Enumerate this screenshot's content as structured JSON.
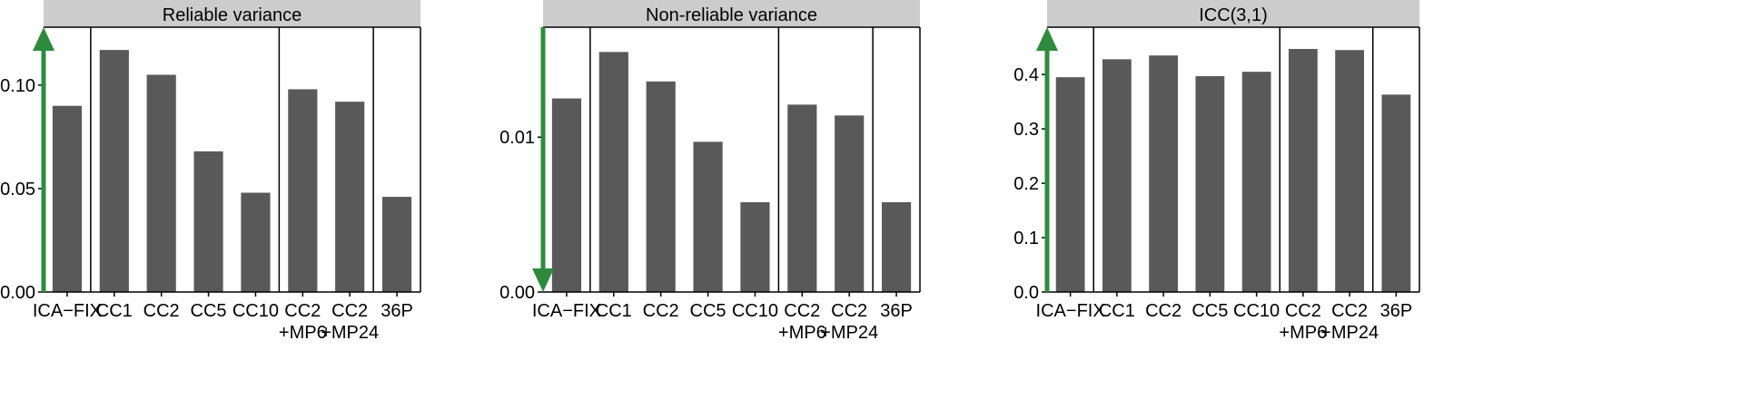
{
  "chart_data": [
    {
      "type": "bar",
      "title": "Reliable variance",
      "categories": [
        "ICA−FIX",
        "CC1",
        "CC2",
        "CC5",
        "CC10",
        "CC2\n+MP6",
        "CC2\n+MP24",
        "36P"
      ],
      "values": [
        0.09,
        0.117,
        0.105,
        0.068,
        0.048,
        0.098,
        0.092,
        0.046
      ],
      "ylim": [
        0,
        0.128
      ],
      "yticks": [
        0.0,
        0.05,
        0.1
      ],
      "ytick_labels": [
        "0.00",
        "0.05",
        "0.10"
      ],
      "group_separators_after": [
        0,
        4,
        6
      ],
      "arrow": "up",
      "xlabel": "",
      "ylabel": ""
    },
    {
      "type": "bar",
      "title": "Non-reliable variance",
      "categories": [
        "ICA−FIX",
        "CC1",
        "CC2",
        "CC5",
        "CC10",
        "CC2\n+MP6",
        "CC2\n+MP24",
        "36P"
      ],
      "values": [
        0.0125,
        0.0155,
        0.0136,
        0.0097,
        0.0058,
        0.0121,
        0.0114,
        0.0058
      ],
      "ylim": [
        0,
        0.0171
      ],
      "yticks": [
        0.0,
        0.01
      ],
      "ytick_labels": [
        "0.00",
        "0.01"
      ],
      "group_separators_after": [
        0,
        4,
        6
      ],
      "arrow": "down",
      "xlabel": "",
      "ylabel": ""
    },
    {
      "type": "bar",
      "title": "ICC(3,1)",
      "categories": [
        "ICA−FIX",
        "CC1",
        "CC2",
        "CC5",
        "CC10",
        "CC2\n+MP6",
        "CC2\n+MP24",
        "36P"
      ],
      "values": [
        0.395,
        0.428,
        0.435,
        0.397,
        0.405,
        0.447,
        0.445,
        0.363
      ],
      "ylim": [
        0,
        0.487
      ],
      "yticks": [
        0.0,
        0.1,
        0.2,
        0.3,
        0.4
      ],
      "ytick_labels": [
        "0.0",
        "0.1",
        "0.2",
        "0.3",
        "0.4"
      ],
      "group_separators_after": [
        0,
        4,
        6
      ],
      "arrow": "up",
      "xlabel": "",
      "ylabel": ""
    }
  ],
  "colors": {
    "bar": "#595959",
    "strip": "#cccccc",
    "arrow": "#2e8b3e",
    "axis": "#000000"
  }
}
